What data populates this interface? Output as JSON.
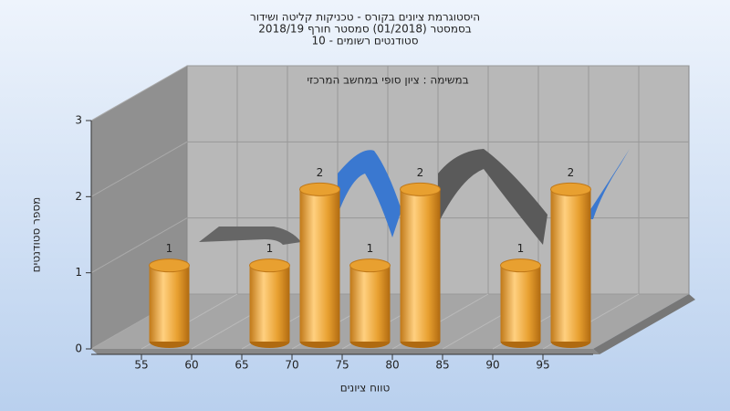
{
  "chart_data": {
    "type": "histogram",
    "title": "היסטוגרמת ציונים בקורס - טכניקות קליטה ושידור",
    "subtitle": "בסמסטר  (01/2018)  סמסטר חורף 2018/19",
    "subtitle2": "סטודנטים רשומים - 10",
    "annotation": "במשימה : ציון סופי במחשב המרכזי",
    "x_label": "טווח ציונים",
    "y_label": "מספר סטודנטים",
    "bins": [
      55,
      60,
      65,
      70,
      75,
      80,
      85,
      90,
      95,
      100
    ],
    "values": [
      1,
      0,
      1,
      2,
      1,
      2,
      0,
      1,
      2
    ],
    "color": "#e8a030",
    "xlim": [
      50,
      100
    ],
    "xticks": [
      55,
      60,
      65,
      70,
      75,
      80,
      85,
      90,
      95
    ],
    "ylim": [
      0,
      3
    ],
    "yticks": [
      0,
      1,
      2,
      3
    ],
    "grid": true
  }
}
